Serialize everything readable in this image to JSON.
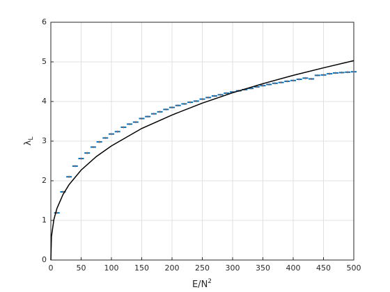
{
  "chart_data": {
    "type": "scatter",
    "xlabel": {
      "text": "E/N",
      "sup": "2"
    },
    "ylabel": {
      "text": "λ",
      "sub": "L"
    },
    "xlim": [
      0,
      500
    ],
    "ylim": [
      0,
      6
    ],
    "xticks": [
      0,
      50,
      100,
      150,
      200,
      250,
      300,
      350,
      400,
      450,
      500
    ],
    "yticks": [
      0,
      1,
      2,
      3,
      4,
      5,
      6
    ],
    "grid": true,
    "series": [
      {
        "type": "scatter",
        "color": "#0072bd",
        "x": [
          10,
          20,
          30,
          40,
          50,
          60,
          70,
          80,
          90,
          100,
          110,
          120,
          130,
          140,
          150,
          160,
          170,
          180,
          190,
          200,
          210,
          220,
          230,
          240,
          250,
          260,
          270,
          280,
          290,
          300,
          310,
          320,
          330,
          340,
          350,
          360,
          370,
          380,
          390,
          400,
          410,
          420,
          430,
          440,
          450,
          460,
          470,
          480,
          490,
          500
        ],
        "values": [
          1.19,
          1.72,
          2.1,
          2.37,
          2.56,
          2.7,
          2.85,
          2.98,
          3.08,
          3.18,
          3.24,
          3.35,
          3.43,
          3.48,
          3.57,
          3.62,
          3.69,
          3.74,
          3.8,
          3.85,
          3.9,
          3.94,
          3.98,
          4.01,
          4.06,
          4.1,
          4.14,
          4.17,
          4.21,
          4.24,
          4.27,
          4.3,
          4.33,
          4.37,
          4.4,
          4.43,
          4.46,
          4.48,
          4.51,
          4.53,
          4.56,
          4.59,
          4.57,
          4.66,
          4.67,
          4.7,
          4.72,
          4.73,
          4.74,
          4.75
        ]
      },
      {
        "type": "line",
        "color": "#000000",
        "x": [
          0,
          1,
          5,
          10,
          20,
          30,
          50,
          75,
          100,
          150,
          200,
          250,
          300,
          350,
          400,
          450,
          500
        ],
        "values": [
          0,
          0.59,
          1.02,
          1.3,
          1.65,
          1.9,
          2.27,
          2.61,
          2.88,
          3.32,
          3.66,
          3.96,
          4.22,
          4.45,
          4.66,
          4.85,
          5.03
        ]
      }
    ]
  }
}
